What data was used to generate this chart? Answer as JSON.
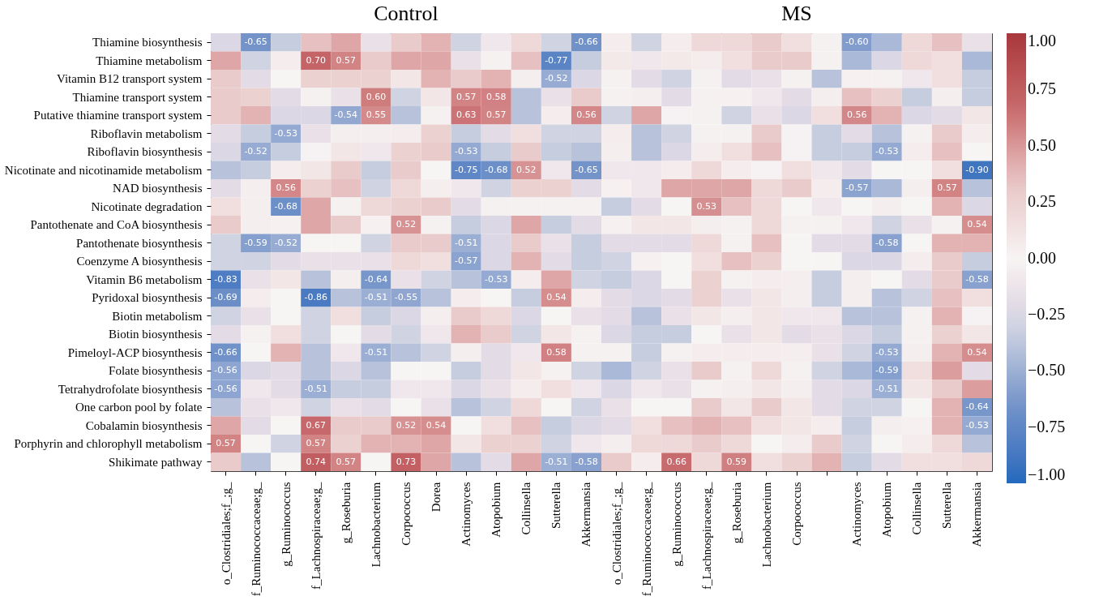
{
  "chart_data": {
    "type": "heatmap",
    "annotations": [
      "Control",
      "MS"
    ],
    "categories": [
      "o_Clostridiales;f_;g_",
      "f_Ruminococcaceae;g_",
      "g_Ruminococcus",
      "f_Lachnospiraceae;g_",
      "g_Roseburia",
      "Lachnobacterium",
      "Corpococcus",
      "Dorea",
      "Actinomyces",
      "Atopobium",
      "Collinsella",
      "Sutterella",
      "Akkermansia",
      "o_Clostridiales;f_;g_",
      "f_Ruminococcaceae;g_",
      "g_Ruminococcus",
      "f_Lachnospiraceae;g_",
      "g_Roseburia",
      "Lachnobacterium",
      "Corpococcus",
      null,
      "Actinomyces",
      "Atopobium",
      "Collinsella",
      "Sutterella",
      "Akkermansia"
    ],
    "y_categories": [
      "Thiamine biosynthesis",
      "Thiamine metabolism",
      "Vitamin B12 transport system",
      "Thiamine transport system",
      "Putative thiamine transport system",
      "Riboflavin metabolism",
      "Riboflavin biosynthesis",
      "Nicotinate and nicotinamide metabolism",
      "NAD biosynthesis",
      "Nicotinate degradation",
      "Pantothenate and CoA biosynthesis",
      "Pantothenate biosynthesis",
      "Coenzyme A biosynthesis",
      "Vitamin B6 metabolism",
      "Pyridoxal biosynthesis",
      "Biotin metabolism",
      "Biotin biosynthesis",
      "Pimeloyl-ACP biosynthesis",
      "Folate biosynthesis",
      "Tetrahydrofolate biosynthesis",
      "One carbon pool by folate",
      "Cobalamin biosynthesis",
      "Porphyrin and chlorophyll metabolism",
      "Shikimate pathway"
    ],
    "cells": [
      [
        -0.25,
        -0.65,
        -0.35,
        0.35,
        0.45,
        -0.15,
        0.3,
        0.4,
        -0.3,
        -0.1,
        0.2,
        -0.3,
        -0.66,
        0.05,
        -0.3,
        0.05,
        0.2,
        0.2,
        0.3,
        0.15,
        0.02,
        -0.6,
        -0.45,
        0.2,
        0.35,
        -0.15
      ],
      [
        0.45,
        -0.3,
        0.05,
        0.7,
        0.57,
        0.3,
        0.45,
        0.45,
        -0.15,
        0.02,
        0.35,
        -0.77,
        -0.35,
        0.08,
        -0.1,
        0.08,
        0.05,
        0.15,
        0.3,
        0.3,
        0.02,
        -0.45,
        -0.25,
        0.2,
        0.15,
        -0.45
      ],
      [
        0.3,
        -0.2,
        0.0,
        0.25,
        0.25,
        0.25,
        0.1,
        0.4,
        0.3,
        0.4,
        -0.05,
        -0.52,
        -0.25,
        0.02,
        -0.2,
        -0.3,
        0.02,
        -0.2,
        -0.15,
        0.02,
        -0.4,
        0.03,
        0.02,
        -0.1,
        0.15,
        -0.35
      ],
      [
        0.3,
        0.25,
        -0.2,
        0.02,
        -0.15,
        0.6,
        -0.3,
        0.1,
        0.57,
        0.58,
        -0.4,
        -0.15,
        0.3,
        0.02,
        -0.05,
        -0.2,
        0.02,
        0.03,
        -0.1,
        -0.2,
        -0.05,
        0.35,
        0.25,
        -0.35,
        -0.05,
        -0.35
      ],
      [
        0.3,
        0.4,
        -0.25,
        -0.25,
        -0.54,
        0.55,
        -0.4,
        0.02,
        0.63,
        0.57,
        -0.4,
        0.05,
        0.56,
        -0.3,
        0.45,
        -0.02,
        0.02,
        -0.3,
        -0.15,
        -0.25,
        0.15,
        0.56,
        0.4,
        -0.25,
        -0.2,
        0.1
      ],
      [
        -0.2,
        -0.35,
        -0.53,
        -0.15,
        -0.05,
        -0.05,
        0.05,
        0.25,
        -0.35,
        -0.2,
        0.15,
        -0.3,
        -0.3,
        0.05,
        -0.4,
        -0.3,
        0.02,
        0.02,
        0.3,
        -0.02,
        -0.35,
        -0.2,
        -0.4,
        0.02,
        0.3,
        0.05
      ],
      [
        -0.25,
        -0.52,
        -0.35,
        -0.02,
        0.1,
        -0.1,
        0.25,
        0.3,
        -0.53,
        -0.35,
        0.3,
        -0.35,
        -0.4,
        -0.05,
        -0.4,
        -0.25,
        0.05,
        0.15,
        0.35,
        -0.02,
        -0.35,
        -0.35,
        -0.53,
        0.05,
        0.35,
        0.0
      ],
      [
        -0.4,
        -0.35,
        0.05,
        0.1,
        0.3,
        -0.35,
        0.3,
        0.0,
        -0.75,
        -0.68,
        0.52,
        -0.1,
        -0.65,
        -0.1,
        -0.1,
        0.05,
        0.2,
        0.05,
        -0.02,
        0.15,
        -0.1,
        -0.2,
        0.0,
        0.0,
        0.15,
        -0.9
      ],
      [
        -0.2,
        -0.05,
        0.56,
        0.25,
        0.35,
        -0.3,
        0.2,
        -0.05,
        -0.1,
        -0.3,
        0.25,
        0.25,
        -0.2,
        0.03,
        -0.1,
        0.45,
        0.45,
        0.45,
        0.2,
        0.3,
        0.05,
        -0.57,
        -0.45,
        -0.05,
        0.57,
        -0.4
      ],
      [
        0.15,
        -0.05,
        -0.68,
        0.45,
        0.02,
        0.2,
        0.25,
        0.3,
        -0.2,
        0.02,
        0.02,
        0.02,
        0.02,
        -0.35,
        -0.2,
        0.0,
        0.53,
        0.35,
        0.2,
        0.0,
        -0.1,
        0.0,
        -0.05,
        0.0,
        0.4,
        -0.25
      ],
      [
        0.3,
        -0.05,
        0.03,
        0.45,
        0.3,
        0.03,
        0.52,
        0.02,
        -0.35,
        -0.25,
        0.45,
        -0.35,
        -0.2,
        0.03,
        0.1,
        0.1,
        -0.05,
        0.02,
        0.2,
        0.02,
        0.02,
        -0.1,
        -0.3,
        -0.15,
        0.02,
        0.54
      ],
      [
        -0.3,
        -0.59,
        -0.52,
        0.0,
        0.0,
        -0.3,
        0.3,
        0.3,
        -0.51,
        -0.25,
        0.3,
        -0.15,
        -0.35,
        -0.2,
        -0.2,
        -0.2,
        0.2,
        0.02,
        0.35,
        0.0,
        -0.2,
        -0.2,
        -0.58,
        0.0,
        0.4,
        0.4
      ],
      [
        -0.3,
        -0.3,
        -0.2,
        -0.15,
        -0.15,
        -0.15,
        0.2,
        0.15,
        -0.57,
        -0.25,
        0.4,
        -0.2,
        -0.35,
        -0.3,
        0.03,
        0.0,
        0.15,
        0.35,
        0.25,
        0.0,
        0.0,
        -0.25,
        -0.25,
        0.05,
        0.3,
        -0.35
      ],
      [
        -0.83,
        -0.15,
        0.1,
        -0.4,
        -0.05,
        -0.64,
        -0.15,
        -0.3,
        -0.4,
        -0.53,
        0.05,
        0.45,
        -0.3,
        -0.35,
        -0.25,
        0.0,
        0.25,
        0.02,
        0.05,
        -0.05,
        -0.35,
        -0.05,
        0.0,
        -0.2,
        0.3,
        -0.58
      ],
      [
        -0.69,
        0.05,
        0.0,
        -0.86,
        -0.4,
        -0.51,
        -0.55,
        -0.4,
        0.05,
        0.0,
        -0.35,
        0.54,
        0.05,
        -0.2,
        -0.25,
        -0.2,
        0.25,
        -0.15,
        0.1,
        -0.05,
        -0.35,
        -0.05,
        -0.4,
        -0.3,
        0.35,
        0.15
      ],
      [
        -0.3,
        -0.15,
        0.0,
        -0.3,
        0.15,
        -0.35,
        -0.25,
        -0.05,
        0.3,
        0.2,
        -0.25,
        0.0,
        -0.15,
        -0.2,
        -0.4,
        -0.15,
        0.1,
        -0.05,
        0.1,
        -0.1,
        -0.1,
        -0.4,
        -0.4,
        0.02,
        0.4,
        -0.02
      ],
      [
        -0.2,
        0.02,
        0.15,
        -0.3,
        0.0,
        -0.2,
        -0.3,
        -0.1,
        0.4,
        0.3,
        -0.3,
        0.1,
        0.02,
        -0.25,
        -0.35,
        -0.35,
        0.0,
        -0.15,
        0.1,
        -0.2,
        -0.15,
        -0.25,
        -0.35,
        0.02,
        0.25,
        0.1
      ],
      [
        -0.66,
        0.0,
        0.4,
        -0.4,
        -0.1,
        -0.51,
        -0.4,
        -0.3,
        -0.05,
        -0.2,
        -0.1,
        0.58,
        0.02,
        0.02,
        -0.35,
        0.02,
        0.05,
        0.05,
        0.05,
        -0.05,
        -0.15,
        -0.3,
        -0.53,
        -0.05,
        0.4,
        0.54
      ],
      [
        -0.56,
        -0.25,
        -0.2,
        -0.4,
        -0.25,
        -0.4,
        0.0,
        0.0,
        -0.35,
        -0.2,
        0.1,
        0.02,
        -0.3,
        -0.45,
        -0.3,
        -0.15,
        0.3,
        0.02,
        0.2,
        0.02,
        -0.3,
        -0.45,
        -0.59,
        0.15,
        0.48,
        -0.2
      ],
      [
        -0.56,
        -0.1,
        -0.2,
        -0.51,
        -0.35,
        -0.35,
        -0.1,
        -0.1,
        -0.25,
        -0.15,
        0.05,
        0.15,
        -0.1,
        -0.25,
        -0.1,
        -0.15,
        0.02,
        -0.05,
        0.1,
        -0.05,
        -0.2,
        -0.25,
        -0.51,
        0.1,
        0.3,
        0.48
      ],
      [
        -0.4,
        -0.15,
        -0.1,
        -0.3,
        -0.15,
        -0.2,
        0.0,
        -0.15,
        -0.4,
        -0.3,
        0.2,
        0.0,
        -0.3,
        -0.15,
        0.0,
        0.0,
        0.3,
        0.1,
        0.3,
        0.1,
        -0.2,
        -0.3,
        -0.3,
        0.0,
        0.4,
        -0.64
      ],
      [
        0.45,
        -0.2,
        0.0,
        0.67,
        0.3,
        0.3,
        0.52,
        0.54,
        0.0,
        0.15,
        0.35,
        -0.35,
        -0.25,
        -0.2,
        0.15,
        0.35,
        0.4,
        0.35,
        0.15,
        0.1,
        0.05,
        -0.35,
        -0.05,
        0.03,
        0.4,
        -0.53
      ],
      [
        0.57,
        0.0,
        -0.3,
        0.57,
        0.25,
        0.4,
        0.4,
        0.45,
        0.1,
        0.25,
        0.25,
        -0.3,
        -0.1,
        -0.05,
        0.2,
        0.2,
        0.3,
        0.2,
        0.0,
        0.05,
        0.3,
        -0.3,
        0.0,
        0.05,
        0.2,
        -0.4
      ],
      [
        0.3,
        -0.4,
        0.0,
        0.74,
        0.57,
        0.0,
        0.73,
        0.45,
        -0.4,
        -0.2,
        0.45,
        -0.51,
        -0.58,
        0.3,
        0.05,
        0.66,
        0.2,
        0.59,
        0.15,
        0.25,
        0.4,
        -0.35,
        -0.2,
        0.15,
        0.15,
        0.2
      ]
    ],
    "cell_labels": [
      [
        null,
        "-0.65",
        null,
        null,
        null,
        null,
        null,
        null,
        null,
        null,
        null,
        null,
        "-0.66",
        null,
        null,
        null,
        null,
        null,
        null,
        null,
        null,
        "-0.60",
        null,
        null,
        null,
        null
      ],
      [
        null,
        null,
        null,
        "0.70",
        "0.57",
        null,
        null,
        null,
        null,
        null,
        null,
        "-0.77",
        null,
        null,
        null,
        null,
        null,
        null,
        null,
        null,
        null,
        null,
        null,
        null,
        null,
        null
      ],
      [
        null,
        null,
        null,
        null,
        null,
        null,
        null,
        null,
        null,
        null,
        null,
        "-0.52",
        null,
        null,
        null,
        null,
        null,
        null,
        null,
        null,
        null,
        null,
        null,
        null,
        null,
        null
      ],
      [
        null,
        null,
        null,
        null,
        null,
        "0.60",
        null,
        null,
        "0.57",
        "0.58",
        null,
        null,
        null,
        null,
        null,
        null,
        null,
        null,
        null,
        null,
        null,
        null,
        null,
        null,
        null,
        null
      ],
      [
        null,
        null,
        null,
        null,
        "-0.54",
        "0.55",
        null,
        null,
        "0.63",
        "0.57",
        null,
        null,
        "0.56",
        null,
        null,
        null,
        null,
        null,
        null,
        null,
        null,
        "0.56",
        null,
        null,
        null,
        null
      ],
      [
        null,
        null,
        "-0.53",
        null,
        null,
        null,
        null,
        null,
        null,
        null,
        null,
        null,
        null,
        null,
        null,
        null,
        null,
        null,
        null,
        null,
        null,
        null,
        null,
        null,
        null,
        null
      ],
      [
        null,
        "-0.52",
        null,
        null,
        null,
        null,
        null,
        null,
        "-0.53",
        null,
        null,
        null,
        null,
        null,
        null,
        null,
        null,
        null,
        null,
        null,
        null,
        null,
        "-0.53",
        null,
        null,
        null
      ],
      [
        null,
        null,
        null,
        null,
        null,
        null,
        null,
        null,
        "-0.75",
        "-0.68",
        "0.52",
        null,
        "-0.65",
        null,
        null,
        null,
        null,
        null,
        null,
        null,
        null,
        null,
        null,
        null,
        null,
        "-0.90"
      ],
      [
        null,
        null,
        "0.56",
        null,
        null,
        null,
        null,
        null,
        null,
        null,
        null,
        null,
        null,
        null,
        null,
        null,
        null,
        null,
        null,
        null,
        null,
        "-0.57",
        null,
        null,
        "0.57",
        null
      ],
      [
        null,
        null,
        "-0.68",
        null,
        null,
        null,
        null,
        null,
        null,
        null,
        null,
        null,
        null,
        null,
        null,
        null,
        "0.53",
        null,
        null,
        null,
        null,
        null,
        null,
        null,
        null,
        null
      ],
      [
        null,
        null,
        null,
        null,
        null,
        null,
        "0.52",
        null,
        null,
        null,
        null,
        null,
        null,
        null,
        null,
        null,
        null,
        null,
        null,
        null,
        null,
        null,
        null,
        null,
        null,
        "0.54"
      ],
      [
        null,
        "-0.59",
        "-0.52",
        null,
        null,
        null,
        null,
        null,
        "-0.51",
        null,
        null,
        null,
        null,
        null,
        null,
        null,
        null,
        null,
        null,
        null,
        null,
        null,
        "-0.58",
        null,
        null,
        null
      ],
      [
        null,
        null,
        null,
        null,
        null,
        null,
        null,
        null,
        "-0.57",
        null,
        null,
        null,
        null,
        null,
        null,
        null,
        null,
        null,
        null,
        null,
        null,
        null,
        null,
        null,
        null,
        null
      ],
      [
        "-0.83",
        null,
        null,
        null,
        null,
        "-0.64",
        null,
        null,
        null,
        "-0.53",
        null,
        null,
        null,
        null,
        null,
        null,
        null,
        null,
        null,
        null,
        null,
        null,
        null,
        null,
        null,
        "-0.58"
      ],
      [
        "-0.69",
        null,
        null,
        "-0.86",
        null,
        "-0.51",
        "-0.55",
        null,
        null,
        null,
        null,
        "0.54",
        null,
        null,
        null,
        null,
        null,
        null,
        null,
        null,
        null,
        null,
        null,
        null,
        null,
        null
      ],
      [
        null,
        null,
        null,
        null,
        null,
        null,
        null,
        null,
        null,
        null,
        null,
        null,
        null,
        null,
        null,
        null,
        null,
        null,
        null,
        null,
        null,
        null,
        null,
        null,
        null,
        null
      ],
      [
        null,
        null,
        null,
        null,
        null,
        null,
        null,
        null,
        null,
        null,
        null,
        null,
        null,
        null,
        null,
        null,
        null,
        null,
        null,
        null,
        null,
        null,
        null,
        null,
        null,
        null
      ],
      [
        "-0.66",
        null,
        null,
        null,
        null,
        "-0.51",
        null,
        null,
        null,
        null,
        null,
        "0.58",
        null,
        null,
        null,
        null,
        null,
        null,
        null,
        null,
        null,
        null,
        "-0.53",
        null,
        null,
        "0.54"
      ],
      [
        "-0.56",
        null,
        null,
        null,
        null,
        null,
        null,
        null,
        null,
        null,
        null,
        null,
        null,
        null,
        null,
        null,
        null,
        null,
        null,
        null,
        null,
        null,
        "-0.59",
        null,
        null,
        null
      ],
      [
        "-0.56",
        null,
        null,
        "-0.51",
        null,
        null,
        null,
        null,
        null,
        null,
        null,
        null,
        null,
        null,
        null,
        null,
        null,
        null,
        null,
        null,
        null,
        null,
        "-0.51",
        null,
        null,
        null
      ],
      [
        null,
        null,
        null,
        null,
        null,
        null,
        null,
        null,
        null,
        null,
        null,
        null,
        null,
        null,
        null,
        null,
        null,
        null,
        null,
        null,
        null,
        null,
        null,
        null,
        null,
        "-0.64"
      ],
      [
        null,
        null,
        null,
        "0.67",
        null,
        null,
        "0.52",
        "0.54",
        null,
        null,
        null,
        null,
        null,
        null,
        null,
        null,
        null,
        null,
        null,
        null,
        null,
        null,
        null,
        null,
        null,
        "-0.53"
      ],
      [
        "0.57",
        null,
        null,
        "0.57",
        null,
        null,
        null,
        null,
        null,
        null,
        null,
        null,
        null,
        null,
        null,
        null,
        null,
        null,
        null,
        null,
        null,
        null,
        null,
        null,
        null,
        null
      ],
      [
        null,
        null,
        null,
        "0.74",
        "0.57",
        null,
        "0.73",
        null,
        null,
        null,
        null,
        "-0.51",
        "-0.58",
        null,
        null,
        "0.66",
        null,
        "0.59",
        null,
        null,
        null,
        null,
        null,
        null,
        null,
        null
      ]
    ],
    "clim": [
      -1,
      1
    ],
    "cticks": [
      {
        "value": -1,
        "label": "−1.00"
      },
      {
        "value": -0.75,
        "label": "−0.75"
      },
      {
        "value": -0.5,
        "label": "−0.50"
      },
      {
        "value": -0.25,
        "label": "−0.25"
      },
      {
        "value": 0,
        "label": "0.00"
      },
      {
        "value": 0.25,
        "label": "0.25"
      },
      {
        "value": 0.5,
        "label": "0.50"
      },
      {
        "value": 0.75,
        "label": "0.75"
      },
      {
        "value": 1,
        "label": "1.00"
      }
    ]
  }
}
